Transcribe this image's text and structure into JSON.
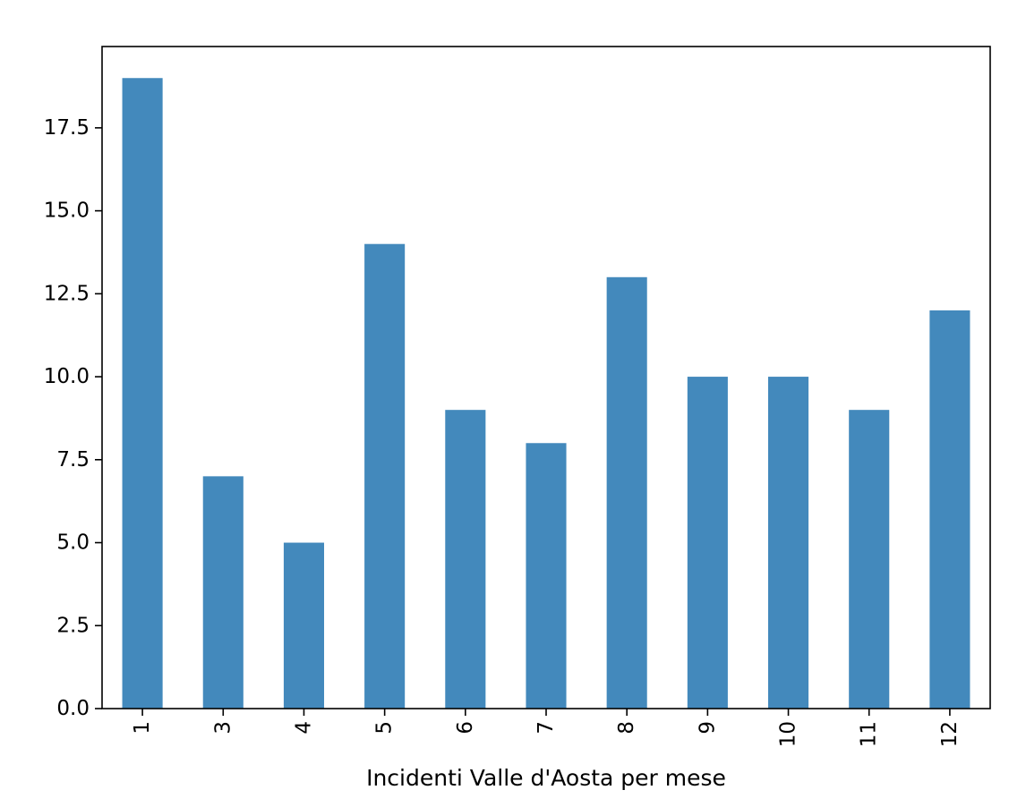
{
  "chart_data": {
    "type": "bar",
    "categories": [
      "1",
      "3",
      "4",
      "5",
      "6",
      "7",
      "8",
      "9",
      "10",
      "11",
      "12"
    ],
    "values": [
      19,
      7,
      5,
      14,
      9,
      8,
      13,
      10,
      10,
      9,
      12
    ],
    "title": "",
    "xlabel": "Incidenti Valle d'Aosta per mese",
    "ylabel": "",
    "ylim": [
      0,
      19.95
    ],
    "yticks": [
      "0.0",
      "2.5",
      "5.0",
      "7.5",
      "10.0",
      "12.5",
      "15.0",
      "17.5"
    ],
    "ytick_values": [
      0,
      2.5,
      5,
      7.5,
      10,
      12.5,
      15,
      17.5
    ],
    "bar_color": "#4389bc",
    "grid": false,
    "legend": "none"
  }
}
